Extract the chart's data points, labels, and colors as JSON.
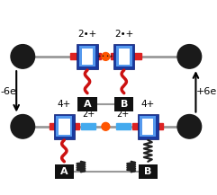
{
  "axle_color": "#999999",
  "stopper_color": "#1a1a1a",
  "ring_outer_color": "#1a3a9f",
  "ring_inner_color": "#5599ee",
  "station_red_color": "#dd2222",
  "station_blue_color": "#44aaee",
  "dot_color": "#ff5500",
  "thread_color": "#cc1111",
  "box_color": "#111111",
  "box_text_color": "#ffffff",
  "label_top_left": "2•+",
  "label_top_right": "2•+",
  "label_bot_ring_l": "4+",
  "label_bot_ring_r": "4+",
  "label_bot_sta_l": "2+",
  "label_bot_sta_r": "2+",
  "label_left_arrow": "-6e",
  "label_right_arrow": "+6e",
  "label_box_A": "A",
  "label_box_B": "B",
  "fig_width": 2.41,
  "fig_height": 2.17,
  "dpi": 100
}
